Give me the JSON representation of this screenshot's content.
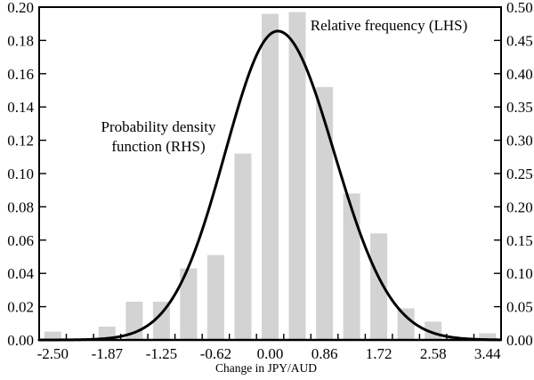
{
  "chart_data": {
    "type": "bar",
    "subtype": "histogram_with_density_curve",
    "title": "",
    "xlabel": "Change in JPY/AUD",
    "background_color": "#ffffff",
    "colors": {
      "bar": "#d3d3d3",
      "curve": "#000000",
      "axis": "#000000",
      "text": "#000000"
    },
    "left_axis": {
      "side": "left",
      "range": [
        0.0,
        0.2
      ],
      "tick_step": 0.02,
      "tick_labels": [
        "0.00",
        "0.02",
        "0.04",
        "0.06",
        "0.08",
        "0.10",
        "0.12",
        "0.14",
        "0.16",
        "0.18",
        "0.20"
      ]
    },
    "right_axis": {
      "side": "right",
      "range": [
        0.0,
        0.5
      ],
      "tick_step": 0.05,
      "tick_labels": [
        "0.00",
        "0.05",
        "0.10",
        "0.15",
        "0.20",
        "0.25",
        "0.30",
        "0.35",
        "0.40",
        "0.45",
        "0.50"
      ]
    },
    "bins": {
      "count": 17,
      "labeled_bin_indices": [
        0,
        2,
        4,
        6,
        8,
        10,
        12,
        14,
        16
      ],
      "x_tick_labels": [
        "-2.50",
        "-1.87",
        "-1.25",
        "-0.62",
        "0.00",
        "0.86",
        "1.72",
        "2.58",
        "3.44"
      ]
    },
    "series": [
      {
        "name": "Relative frequency (LHS)",
        "type": "bar",
        "axis": "left",
        "values": [
          0.005,
          0.0,
          0.008,
          0.023,
          0.023,
          0.043,
          0.051,
          0.112,
          0.196,
          0.197,
          0.152,
          0.088,
          0.064,
          0.019,
          0.011,
          0.0,
          0.004
        ]
      },
      {
        "name": "Probability density function (RHS)",
        "type": "line",
        "axis": "right",
        "curve": {
          "shape": "skewed_gaussian",
          "peak_value_rhs": 0.464,
          "peak_x_frac": 0.5164,
          "sigma_left_frac": 0.1137,
          "sigma_right_frac": 0.1224
        }
      }
    ],
    "annotations": {
      "pdf_line1": "Probability density",
      "pdf_line2": "function (RHS)",
      "freq_label": "Relative frequency (LHS)"
    },
    "legend": {
      "visible": false
    },
    "grid": false
  }
}
